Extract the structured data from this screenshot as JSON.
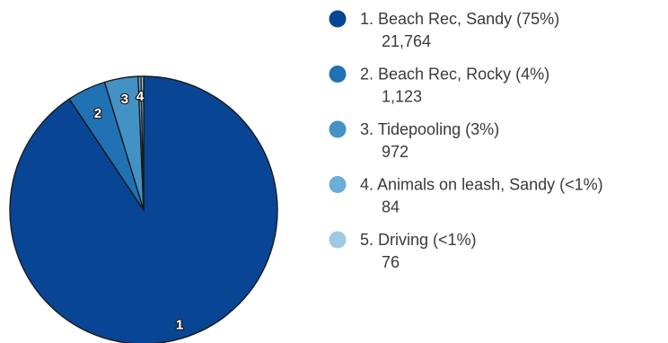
{
  "chart_data": {
    "type": "pie",
    "title": "",
    "legend_position": "right",
    "start": "top, clockwise",
    "slices": [
      {
        "number": "1",
        "label": "1. Beach Rec, Sandy (75%)",
        "value_text": "21,764",
        "value": 21764,
        "color": "#084594"
      },
      {
        "number": "2",
        "label": "2. Beach Rec, Rocky (4%)",
        "value_text": "1,123",
        "value": 1123,
        "color": "#2171b5"
      },
      {
        "number": "3",
        "label": "3. Tidepooling (3%)",
        "value_text": "972",
        "value": 972,
        "color": "#4292c6"
      },
      {
        "number": "4",
        "label": "4. Animals on leash, Sandy (<1%)",
        "value_text": "84",
        "value": 84,
        "color": "#6baed6"
      },
      {
        "number": "5",
        "label": "5. Driving (<1%)",
        "value_text": "76",
        "value": 76,
        "color": "#9ecae1"
      }
    ]
  }
}
